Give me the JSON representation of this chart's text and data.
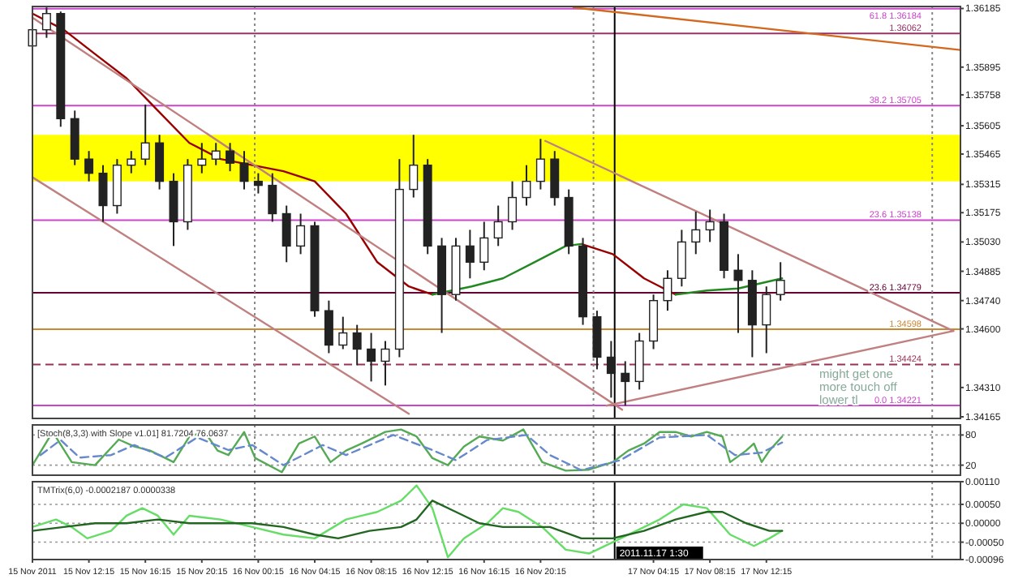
{
  "chart_data": [
    {
      "type": "candlestick",
      "xlim": [
        "2011-11-15T08:15",
        "2011-11-18T02:00"
      ],
      "ylim": [
        1.34157,
        1.36195
      ],
      "tick_labels": "y",
      "yticks": [
        {
          "value": 1.36185,
          "label": "1.36185"
        },
        {
          "value": 1.35895,
          "label": "1.35895"
        },
        {
          "value": 1.35758,
          "label": "1.35758"
        },
        {
          "value": 1.35605,
          "label": "1.35605"
        },
        {
          "value": 1.35465,
          "label": "1.35465"
        },
        {
          "value": 1.35315,
          "label": "1.35315"
        },
        {
          "value": 1.35175,
          "label": "1.35175"
        },
        {
          "value": 1.3503,
          "label": "1.35030"
        },
        {
          "value": 1.34885,
          "label": "1.34885"
        },
        {
          "value": 1.3474,
          "label": "1.34740"
        },
        {
          "value": 1.346,
          "label": "1.34600"
        },
        {
          "value": 1.3431,
          "label": "1.34310"
        },
        {
          "value": 1.34165,
          "label": "1.34165"
        }
      ],
      "bands": [
        {
          "axis": "y",
          "from": 1.3533,
          "to": 1.3556,
          "color": "#ffff00"
        }
      ],
      "ref_lines": [
        {
          "axis": "y",
          "value": 1.36184,
          "label": "61.8 1.36184",
          "color": "#cc44cc"
        },
        {
          "axis": "y",
          "value": 1.36062,
          "label": "1.36062",
          "color": "#993366"
        },
        {
          "axis": "y",
          "value": 1.35705,
          "label": "38.2 1.35705",
          "color": "#cc44cc"
        },
        {
          "axis": "y",
          "value": 1.35138,
          "label": "23.6 1.35138",
          "color": "#cc44cc"
        },
        {
          "axis": "y",
          "value": 1.34779,
          "label": "23.6 1.34779",
          "color": "#660033"
        },
        {
          "axis": "y",
          "value": 1.34598,
          "label": "1.34598",
          "color": "#cc8833"
        },
        {
          "axis": "y",
          "value": 1.34424,
          "label": "1.34424",
          "color": "#993355",
          "line_style": "dashed"
        },
        {
          "axis": "y",
          "value": 1.34221,
          "label": "0.0 1.34221",
          "color": "#cc44cc"
        },
        {
          "axis": "x",
          "value": "2011-11-16T00:00",
          "color": "#888888",
          "line_style": "dotted"
        },
        {
          "axis": "x",
          "value": "2011-11-17T00:00",
          "color": "#888888",
          "line_style": "dotted"
        },
        {
          "axis": "x",
          "value": "2011-11-18T00:00",
          "color": "#888888",
          "line_style": "dotted"
        },
        {
          "axis": "x",
          "value": "2011-11-17T01:30",
          "color": "#000000"
        }
      ],
      "annotations": [
        "might get one more touch off lower tl"
      ],
      "series": [
        {
          "color": "#222222",
          "x": [
            "2011-11-15T08:15",
            "2011-11-15T09:15",
            "2011-11-15T10:15",
            "2011-11-15T11:15",
            "2011-11-15T12:15",
            "2011-11-15T13:15",
            "2011-11-15T14:15",
            "2011-11-15T15:15",
            "2011-11-15T16:15",
            "2011-11-15T17:15",
            "2011-11-15T18:15",
            "2011-11-15T19:15",
            "2011-11-15T20:15",
            "2011-11-15T21:15",
            "2011-11-15T22:15",
            "2011-11-15T23:15",
            "2011-11-16T00:15",
            "2011-11-16T01:15",
            "2011-11-16T02:15",
            "2011-11-16T03:15",
            "2011-11-16T04:15",
            "2011-11-16T05:15",
            "2011-11-16T06:15",
            "2011-11-16T07:15",
            "2011-11-16T08:15",
            "2011-11-16T09:15",
            "2011-11-16T10:15",
            "2011-11-16T11:15",
            "2011-11-16T12:15",
            "2011-11-16T13:15",
            "2011-11-16T14:15",
            "2011-11-16T15:15",
            "2011-11-16T16:15",
            "2011-11-16T17:15",
            "2011-11-16T18:15",
            "2011-11-16T19:15",
            "2011-11-16T20:15",
            "2011-11-16T21:15",
            "2011-11-16T22:15",
            "2011-11-16T23:15",
            "2011-11-17T00:15",
            "2011-11-17T01:15",
            "2011-11-17T02:15",
            "2011-11-17T03:15",
            "2011-11-17T04:15",
            "2011-11-17T05:15",
            "2011-11-17T06:15",
            "2011-11-17T07:15",
            "2011-11-17T08:15",
            "2011-11-17T09:15",
            "2011-11-17T10:15",
            "2011-11-17T11:15",
            "2011-11-17T12:15",
            "2011-11-17T13:15"
          ],
          "ohlc": [
            [
              1.36,
              1.3616,
              1.3592,
              1.3608
            ],
            [
              1.3608,
              1.3619,
              1.3604,
              1.3616
            ],
            [
              1.3616,
              1.3617,
              1.356,
              1.3564
            ],
            [
              1.3564,
              1.3568,
              1.3541,
              1.3544
            ],
            [
              1.3544,
              1.3548,
              1.3533,
              1.3537
            ],
            [
              1.3537,
              1.3541,
              1.3513,
              1.3521
            ],
            [
              1.3521,
              1.3544,
              1.3517,
              1.3541
            ],
            [
              1.3541,
              1.3548,
              1.3537,
              1.3544
            ],
            [
              1.3544,
              1.3571,
              1.3541,
              1.3552
            ],
            [
              1.3552,
              1.3556,
              1.3529,
              1.3533
            ],
            [
              1.3533,
              1.3537,
              1.3501,
              1.3513
            ],
            [
              1.3513,
              1.3544,
              1.3509,
              1.3541
            ],
            [
              1.3541,
              1.3552,
              1.3537,
              1.3544
            ],
            [
              1.3544,
              1.3552,
              1.3541,
              1.3548
            ],
            [
              1.3548,
              1.3552,
              1.3538,
              1.3542
            ],
            [
              1.3542,
              1.3548,
              1.3529,
              1.3533
            ],
            [
              1.3533,
              1.3537,
              1.3527,
              1.3531
            ],
            [
              1.3531,
              1.3537,
              1.3513,
              1.3517
            ],
            [
              1.3517,
              1.3521,
              1.3493,
              1.3501
            ],
            [
              1.3501,
              1.3517,
              1.3497,
              1.3511
            ],
            [
              1.3511,
              1.3513,
              1.3466,
              1.3469
            ],
            [
              1.3469,
              1.3474,
              1.3448,
              1.3452
            ],
            [
              1.3452,
              1.3466,
              1.345,
              1.3458
            ],
            [
              1.3458,
              1.3462,
              1.3442,
              1.345
            ],
            [
              1.345,
              1.3458,
              1.3434,
              1.3444
            ],
            [
              1.3444,
              1.3454,
              1.3432,
              1.345
            ],
            [
              1.345,
              1.3544,
              1.3446,
              1.3529
            ],
            [
              1.3529,
              1.3556,
              1.3525,
              1.3541
            ],
            [
              1.3541,
              1.3544,
              1.3497,
              1.3501
            ],
            [
              1.3501,
              1.3505,
              1.3458,
              1.3477
            ],
            [
              1.3477,
              1.3505,
              1.3474,
              1.3501
            ],
            [
              1.3501,
              1.3509,
              1.3485,
              1.3493
            ],
            [
              1.3493,
              1.3513,
              1.3489,
              1.3505
            ],
            [
              1.3505,
              1.3521,
              1.3501,
              1.3513
            ],
            [
              1.3513,
              1.3533,
              1.3509,
              1.3525
            ],
            [
              1.3525,
              1.3541,
              1.3521,
              1.3533
            ],
            [
              1.3533,
              1.3554,
              1.3529,
              1.3544
            ],
            [
              1.3544,
              1.3548,
              1.3521,
              1.3525
            ],
            [
              1.3525,
              1.3529,
              1.3497,
              1.3501
            ],
            [
              1.3501,
              1.3505,
              1.3462,
              1.3466
            ],
            [
              1.3466,
              1.3469,
              1.344,
              1.3446
            ],
            [
              1.3446,
              1.3454,
              1.3426,
              1.3438
            ],
            [
              1.3438,
              1.3444,
              1.3422,
              1.3434
            ],
            [
              1.3434,
              1.3458,
              1.343,
              1.3454
            ],
            [
              1.3454,
              1.3477,
              1.345,
              1.3474
            ],
            [
              1.3474,
              1.3489,
              1.3469,
              1.3485
            ],
            [
              1.3485,
              1.3509,
              1.3481,
              1.3503
            ],
            [
              1.3503,
              1.3518,
              1.3497,
              1.3509
            ],
            [
              1.3509,
              1.3519,
              1.3503,
              1.3513
            ],
            [
              1.3513,
              1.3517,
              1.3485,
              1.3489
            ],
            [
              1.3489,
              1.3497,
              1.3458,
              1.3484
            ],
            [
              1.3484,
              1.3489,
              1.3446,
              1.3462
            ],
            [
              1.3462,
              1.3481,
              1.3448,
              1.3477
            ],
            [
              1.3477,
              1.3493,
              1.3474,
              1.3484
            ]
          ]
        },
        {
          "type": "line",
          "color": "#990000",
          "x": [
            "2011-11-15T08:15",
            "2011-11-15T10:28",
            "2011-11-15T12:41",
            "2011-11-15T14:55",
            "2011-11-15T17:08",
            "2011-11-15T19:22",
            "2011-11-15T21:35",
            "2011-11-15T23:49",
            "2011-11-16T02:02",
            "2011-11-16T04:15",
            "2011-11-16T06:28",
            "2011-11-16T08:41",
            "2011-11-16T10:55",
            "2011-11-16T12:35",
            "2011-11-16T18:00",
            "2011-11-16T23:08",
            "2011-11-17T01:22",
            "2011-11-17T03:35",
            "2011-11-17T05:49"
          ],
          "values": [
            1.3616,
            1.3608,
            1.3596,
            1.3584,
            1.3568,
            1.3552,
            1.3544,
            1.3541,
            1.3538,
            1.3533,
            1.3517,
            1.3493,
            1.3481,
            1.3477,
            null,
            1.3502,
            1.3497,
            1.3485,
            1.3477
          ]
        },
        {
          "type": "line",
          "color": "#228822",
          "x": [
            "2011-11-16T12:35",
            "2011-11-16T15:22",
            "2011-11-16T17:35",
            "2011-11-16T19:49",
            "2011-11-16T22:02",
            "2011-11-16T23:08",
            "2011-11-17T02:00",
            "2011-11-17T05:49",
            "2011-11-17T08:02",
            "2011-11-17T10:15",
            "2011-11-17T13:22"
          ],
          "values": [
            1.3477,
            1.3481,
            1.3485,
            1.3493,
            1.3501,
            1.3502,
            null,
            1.3477,
            1.3479,
            1.348,
            1.3485
          ]
        },
        {
          "type": "line",
          "color": "#c08080",
          "x": [
            "2011-11-15T08:15",
            "2011-11-17T02:02"
          ],
          "values": [
            1.3614,
            1.342
          ]
        },
        {
          "type": "line",
          "color": "#c08080",
          "x": [
            "2011-11-15T08:15",
            "2011-11-16T10:55"
          ],
          "values": [
            1.3535,
            1.3418
          ]
        },
        {
          "type": "line",
          "color": "#c08080",
          "x": [
            "2011-11-16T20:35",
            "2011-11-18T01:30"
          ],
          "values": [
            1.3553,
            1.3459
          ]
        },
        {
          "type": "line",
          "color": "#c08080",
          "x": [
            "2011-11-17T00:55",
            "2011-11-18T01:30"
          ],
          "values": [
            1.3422,
            1.3459
          ]
        },
        {
          "type": "line",
          "color": "#d2691e",
          "x": [
            "2011-11-16T22:35",
            "2011-11-18T02:00"
          ],
          "values": [
            1.3619,
            1.3598
          ]
        }
      ]
    },
    {
      "type": "line",
      "title": "[Stoch(8,3,3) with Slope v1.01] 81.7204 76.0637",
      "xlim": [
        "2011-11-15T08:15",
        "2011-11-18T02:00"
      ],
      "ylim": [
        0,
        100
      ],
      "yticks": [
        80,
        20
      ],
      "grid": "y",
      "tick_labels": "y",
      "ref_lines": [
        {
          "axis": "x",
          "value": "2011-11-16T00:00",
          "color": "#888888",
          "line_style": "dotted"
        },
        {
          "axis": "x",
          "value": "2011-11-17T00:00",
          "color": "#888888",
          "line_style": "dotted"
        },
        {
          "axis": "x",
          "value": "2011-11-18T00:00",
          "color": "#888888",
          "line_style": "dotted"
        },
        {
          "axis": "x",
          "value": "2011-11-17T01:30",
          "color": "#000000"
        }
      ],
      "series": [
        {
          "color": "#55aa55",
          "x": [
            "2011-11-15T08:15",
            "2011-11-15T09:41",
            "2011-11-15T11:02",
            "2011-11-15T12:41",
            "2011-11-15T14:22",
            "2011-11-15T15:28",
            "2011-11-15T16:35",
            "2011-11-15T18:15",
            "2011-11-15T19:22",
            "2011-11-15T20:28",
            "2011-11-15T21:22",
            "2011-11-15T22:08",
            "2011-11-15T23:15",
            "2011-11-16T00:02",
            "2011-11-16T01:55",
            "2011-11-16T03:08",
            "2011-11-16T04:15",
            "2011-11-16T05:22",
            "2011-11-16T06:28",
            "2011-11-16T07:35",
            "2011-11-16T09:15",
            "2011-11-16T10:22",
            "2011-11-16T11:28",
            "2011-11-16T12:35",
            "2011-11-16T13:41",
            "2011-11-16T14:49",
            "2011-11-16T15:55",
            "2011-11-16T17:35",
            "2011-11-16T19:02",
            "2011-11-16T20:22",
            "2011-11-16T22:02",
            "2011-11-16T23:41",
            "2011-11-17T01:22",
            "2011-11-17T02:28",
            "2011-11-17T03:35",
            "2011-11-17T04:41",
            "2011-11-17T05:49",
            "2011-11-17T06:55",
            "2011-11-17T08:02",
            "2011-11-17T09:08",
            "2011-11-17T09:41",
            "2011-11-17T10:49",
            "2011-11-17T11:22",
            "2011-11-17T11:55",
            "2011-11-17T12:28",
            "2011-11-17T13:22"
          ],
          "values": [
            20,
            86,
            26,
            20,
            71,
            57,
            49,
            26,
            77,
            86,
            49,
            40,
            86,
            34,
            6,
            63,
            77,
            26,
            49,
            63,
            86,
            91,
            77,
            34,
            20,
            57,
            77,
            69,
            91,
            26,
            9,
            11,
            26,
            49,
            63,
            86,
            86,
            77,
            86,
            77,
            26,
            49,
            63,
            26,
            49,
            77
          ]
        },
        {
          "color": "#6688cc",
          "line_style": "dashed",
          "x": [
            "2011-11-15T08:49",
            "2011-11-15T10:15",
            "2011-11-15T11:35",
            "2011-11-15T13:49",
            "2011-11-15T15:28",
            "2011-11-15T17:41",
            "2011-11-15T19:55",
            "2011-11-15T22:08",
            "2011-11-15T23:49",
            "2011-11-16T02:02",
            "2011-11-16T04:49",
            "2011-11-16T06:28",
            "2011-11-16T09:49",
            "2011-11-16T12:35",
            "2011-11-16T14:15",
            "2011-11-16T16:28",
            "2011-11-16T19:15",
            "2011-11-16T20:55",
            "2011-11-16T23:08",
            "2011-11-17T01:55",
            "2011-11-17T04:41",
            "2011-11-17T08:02",
            "2011-11-17T10:02",
            "2011-11-17T11:55",
            "2011-11-17T13:22"
          ],
          "values": [
            40,
            70,
            35,
            40,
            60,
            35,
            75,
            50,
            60,
            20,
            60,
            40,
            80,
            50,
            30,
            70,
            80,
            40,
            10,
            30,
            75,
            80,
            40,
            45,
            65
          ]
        }
      ]
    },
    {
      "type": "line",
      "title": "TMTrix(6,0) -0.0002187 0.0000338",
      "xlim": [
        "2011-11-15T08:15",
        "2011-11-18T02:00"
      ],
      "ylim": [
        -0.00096,
        0.0011
      ],
      "grid": "y",
      "yticks": [
        {
          "value": 0.0011,
          "label": "0.00110"
        },
        {
          "value": 0.0005,
          "label": "0.00050"
        },
        {
          "value": 0,
          "label": "0.00000"
        },
        {
          "value": -0.0005,
          "label": "-0.00050"
        },
        {
          "value": -0.00096,
          "label": "-0.00096"
        }
      ],
      "xticks": [
        {
          "value": "2011-11-15T08:15",
          "label": "15 Nov 2011"
        },
        {
          "value": "2011-11-15T12:15",
          "label": "15 Nov 12:15"
        },
        {
          "value": "2011-11-15T16:15",
          "label": "15 Nov 16:15"
        },
        {
          "value": "2011-11-15T20:15",
          "label": "15 Nov 20:15"
        },
        {
          "value": "2011-11-16T00:15",
          "label": "16 Nov 00:15"
        },
        {
          "value": "2011-11-16T04:15",
          "label": "16 Nov 04:15"
        },
        {
          "value": "2011-11-16T08:15",
          "label": "16 Nov 08:15"
        },
        {
          "value": "2011-11-16T12:15",
          "label": "16 Nov 12:15"
        },
        {
          "value": "2011-11-16T16:15",
          "label": "16 Nov 16:15"
        },
        {
          "value": "2011-11-16T20:15",
          "label": "16 Nov 20:15"
        },
        {
          "value": "2011-11-17T04:15",
          "label": "17 Nov 04:15"
        },
        {
          "value": "2011-11-17T08:15",
          "label": "17 Nov 08:15"
        },
        {
          "value": "2011-11-17T12:15",
          "label": "17 Nov 12:15"
        }
      ],
      "ref_lines": [
        {
          "axis": "x",
          "value": "2011-11-16T00:00",
          "color": "#888888",
          "line_style": "dotted"
        },
        {
          "axis": "x",
          "value": "2011-11-17T00:00",
          "color": "#888888",
          "line_style": "dotted"
        },
        {
          "axis": "x",
          "value": "2011-11-18T00:00",
          "color": "#888888",
          "line_style": "dotted"
        },
        {
          "axis": "x",
          "value": "2011-11-17T01:30",
          "color": "#000000",
          "label": "2011.11.17 1:30"
        }
      ],
      "series": [
        {
          "color": "#66dd66",
          "x": [
            "2011-11-15T08:15",
            "2011-11-15T09:55",
            "2011-11-15T11:02",
            "2011-11-15T12:08",
            "2011-11-15T13:49",
            "2011-11-15T14:55",
            "2011-11-15T16:02",
            "2011-11-15T17:08",
            "2011-11-15T18:15",
            "2011-11-15T19:22",
            "2011-11-15T21:35",
            "2011-11-15T23:49",
            "2011-11-16T02:02",
            "2011-11-16T04:15",
            "2011-11-16T06:28",
            "2011-11-16T07:35",
            "2011-11-16T08:41",
            "2011-11-16T10:22",
            "2011-11-16T11:28",
            "2011-11-16T12:35",
            "2011-11-16T13:41",
            "2011-11-16T14:49",
            "2011-11-16T16:28",
            "2011-11-16T17:35",
            "2011-11-16T18:41",
            "2011-11-16T20:22",
            "2011-11-16T22:02",
            "2011-11-16T23:41",
            "2011-11-17T01:22",
            "2011-11-17T03:02",
            "2011-11-17T04:41",
            "2011-11-17T06:22",
            "2011-11-17T08:02",
            "2011-11-17T09:41",
            "2011-11-17T11:22",
            "2011-11-17T12:28",
            "2011-11-17T13:22"
          ],
          "values": [
            -0.0001,
            0.0001,
            -0.0001,
            -0.0004,
            -0.0002,
            0.0002,
            0.0004,
            0.0002,
            -0.0003,
            0.0002,
            0.0001,
            -0.0001,
            -0.0003,
            -0.0004,
            0.0001,
            0.0002,
            0.0003,
            0.0006,
            0.001,
            0.0004,
            -0.0009,
            -0.0004,
            0,
            0.0004,
            0.0003,
            -0.0001,
            -0.0007,
            -0.0008,
            -0.0005,
            -0.0002,
            0.0001,
            0.0005,
            0.0004,
            -0.0003,
            -0.0006,
            -0.0004,
            -0.0002
          ]
        },
        {
          "color": "#226622",
          "x": [
            "2011-11-15T08:15",
            "2011-11-15T10:28",
            "2011-11-15T12:41",
            "2011-11-15T14:55",
            "2011-11-15T17:08",
            "2011-11-15T19:22",
            "2011-11-15T21:35",
            "2011-11-15T23:49",
            "2011-11-16T02:02",
            "2011-11-16T04:15",
            "2011-11-16T05:55",
            "2011-11-16T08:08",
            "2011-11-16T10:22",
            "2011-11-16T11:28",
            "2011-11-16T12:35",
            "2011-11-16T14:15",
            "2011-11-16T15:55",
            "2011-11-16T17:35",
            "2011-11-16T19:15",
            "2011-11-16T20:55",
            "2011-11-16T23:08",
            "2011-11-17T01:22",
            "2011-11-17T03:35",
            "2011-11-17T05:49",
            "2011-11-17T08:02",
            "2011-11-17T09:08",
            "2011-11-17T10:49",
            "2011-11-17T12:28",
            "2011-11-17T13:22"
          ],
          "values": [
            -0.0002,
            -0.0001,
            0,
            0,
            0.0001,
            0,
            0,
            0,
            -0.0001,
            -0.0003,
            -0.0004,
            -0.0002,
            -0.0001,
            0.0001,
            0.0006,
            0.0003,
            0,
            -0.0001,
            -0.0001,
            -0.0001,
            -0.0004,
            -0.0004,
            -0.0002,
            0.0001,
            0.0003,
            0.0003,
            0,
            -0.0002,
            -0.0002
          ]
        }
      ]
    }
  ]
}
